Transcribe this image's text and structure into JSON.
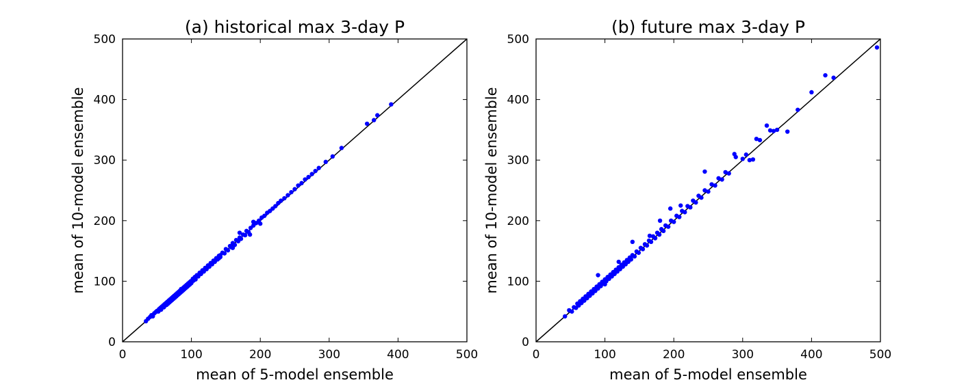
{
  "chart_data": [
    {
      "type": "scatter",
      "title": "(a) historical max 3-day P",
      "xlabel": "mean of 5-model ensemble",
      "ylabel": "mean of 10-model ensemble",
      "xlim": [
        0,
        500
      ],
      "ylim": [
        0,
        500
      ],
      "xticks": [
        0,
        100,
        200,
        300,
        400,
        500
      ],
      "yticks": [
        0,
        100,
        200,
        300,
        400,
        500
      ],
      "marker_color": "#0000ff",
      "reference_line": "y = x",
      "grid": false,
      "points": [
        [
          34,
          34
        ],
        [
          37,
          38
        ],
        [
          40,
          41
        ],
        [
          42,
          44
        ],
        [
          44,
          42
        ],
        [
          46,
          47
        ],
        [
          48,
          49
        ],
        [
          50,
          51
        ],
        [
          52,
          50
        ],
        [
          53,
          54
        ],
        [
          55,
          56
        ],
        [
          56,
          53
        ],
        [
          57,
          58
        ],
        [
          59,
          60
        ],
        [
          60,
          57
        ],
        [
          61,
          62
        ],
        [
          62,
          60
        ],
        [
          63,
          64
        ],
        [
          64,
          61
        ],
        [
          65,
          66
        ],
        [
          66,
          63
        ],
        [
          67,
          68
        ],
        [
          68,
          65
        ],
        [
          69,
          70
        ],
        [
          70,
          67
        ],
        [
          71,
          72
        ],
        [
          72,
          69
        ],
        [
          73,
          74
        ],
        [
          74,
          71
        ],
        [
          75,
          76
        ],
        [
          76,
          73
        ],
        [
          77,
          78
        ],
        [
          78,
          75
        ],
        [
          79,
          80
        ],
        [
          80,
          77
        ],
        [
          81,
          82
        ],
        [
          82,
          79
        ],
        [
          83,
          84
        ],
        [
          84,
          81
        ],
        [
          85,
          87
        ],
        [
          86,
          83
        ],
        [
          87,
          88
        ],
        [
          88,
          85
        ],
        [
          89,
          90
        ],
        [
          90,
          87
        ],
        [
          91,
          92
        ],
        [
          92,
          89
        ],
        [
          93,
          94
        ],
        [
          94,
          91
        ],
        [
          95,
          96
        ],
        [
          96,
          93
        ],
        [
          97,
          98
        ],
        [
          98,
          95
        ],
        [
          99,
          100
        ],
        [
          100,
          97
        ],
        [
          102,
          104
        ],
        [
          103,
          101
        ],
        [
          105,
          107
        ],
        [
          106,
          103
        ],
        [
          108,
          110
        ],
        [
          110,
          108
        ],
        [
          112,
          114
        ],
        [
          114,
          112
        ],
        [
          116,
          118
        ],
        [
          118,
          116
        ],
        [
          120,
          122
        ],
        [
          122,
          120
        ],
        [
          124,
          126
        ],
        [
          126,
          124
        ],
        [
          128,
          130
        ],
        [
          130,
          128
        ],
        [
          132,
          134
        ],
        [
          134,
          132
        ],
        [
          136,
          138
        ],
        [
          138,
          136
        ],
        [
          140,
          142
        ],
        [
          142,
          140
        ],
        [
          145,
          147
        ],
        [
          148,
          146
        ],
        [
          150,
          153
        ],
        [
          153,
          151
        ],
        [
          156,
          158
        ],
        [
          158,
          156
        ],
        [
          160,
          163
        ],
        [
          163,
          160
        ],
        [
          165,
          168
        ],
        [
          168,
          166
        ],
        [
          170,
          172
        ],
        [
          172,
          170
        ],
        [
          175,
          177
        ],
        [
          178,
          176
        ],
        [
          180,
          183
        ],
        [
          183,
          181
        ],
        [
          186,
          188
        ],
        [
          190,
          192
        ],
        [
          194,
          196
        ],
        [
          198,
          200
        ],
        [
          202,
          205
        ],
        [
          206,
          208
        ],
        [
          210,
          213
        ],
        [
          214,
          216
        ],
        [
          218,
          220
        ],
        [
          222,
          224
        ],
        [
          226,
          229
        ],
        [
          230,
          233
        ],
        [
          235,
          237
        ],
        [
          240,
          242
        ],
        [
          245,
          247
        ],
        [
          250,
          252
        ],
        [
          255,
          258
        ],
        [
          260,
          262
        ],
        [
          265,
          268
        ],
        [
          270,
          272
        ],
        [
          275,
          277
        ],
        [
          280,
          282
        ],
        [
          285,
          287
        ],
        [
          295,
          297
        ],
        [
          305,
          306
        ],
        [
          318,
          320
        ],
        [
          355,
          360
        ],
        [
          365,
          366
        ],
        [
          370,
          374
        ],
        [
          390,
          392
        ],
        [
          142,
          143
        ],
        [
          170,
          180
        ],
        [
          190,
          198
        ],
        [
          200,
          195
        ],
        [
          185,
          177
        ],
        [
          160,
          155
        ],
        [
          140,
          138
        ]
      ]
    },
    {
      "type": "scatter",
      "title": "(b) future max 3-day P",
      "xlabel": "mean of 5-model ensemble",
      "ylabel": "mean of 10-model ensemble",
      "xlim": [
        0,
        500
      ],
      "ylim": [
        0,
        500
      ],
      "xticks": [
        0,
        100,
        200,
        300,
        400,
        500
      ],
      "yticks": [
        0,
        100,
        200,
        300,
        400,
        500
      ],
      "marker_color": "#0000ff",
      "reference_line": "y = x",
      "grid": false,
      "points": [
        [
          42,
          42
        ],
        [
          48,
          52
        ],
        [
          52,
          50
        ],
        [
          55,
          57
        ],
        [
          58,
          56
        ],
        [
          60,
          63
        ],
        [
          62,
          60
        ],
        [
          64,
          67
        ],
        [
          66,
          64
        ],
        [
          68,
          71
        ],
        [
          70,
          68
        ],
        [
          72,
          75
        ],
        [
          74,
          72
        ],
        [
          76,
          79
        ],
        [
          78,
          76
        ],
        [
          80,
          83
        ],
        [
          82,
          80
        ],
        [
          84,
          87
        ],
        [
          86,
          84
        ],
        [
          88,
          91
        ],
        [
          90,
          88
        ],
        [
          92,
          95
        ],
        [
          94,
          92
        ],
        [
          96,
          99
        ],
        [
          98,
          96
        ],
        [
          100,
          103
        ],
        [
          102,
          100
        ],
        [
          104,
          107
        ],
        [
          106,
          104
        ],
        [
          108,
          111
        ],
        [
          110,
          108
        ],
        [
          112,
          115
        ],
        [
          114,
          112
        ],
        [
          116,
          119
        ],
        [
          118,
          116
        ],
        [
          120,
          123
        ],
        [
          122,
          120
        ],
        [
          124,
          127
        ],
        [
          126,
          124
        ],
        [
          128,
          131
        ],
        [
          130,
          128
        ],
        [
          132,
          135
        ],
        [
          134,
          132
        ],
        [
          136,
          139
        ],
        [
          138,
          136
        ],
        [
          140,
          143
        ],
        [
          143,
          141
        ],
        [
          146,
          149
        ],
        [
          149,
          147
        ],
        [
          152,
          155
        ],
        [
          155,
          153
        ],
        [
          158,
          161
        ],
        [
          161,
          159
        ],
        [
          164,
          167
        ],
        [
          167,
          165
        ],
        [
          170,
          174
        ],
        [
          173,
          171
        ],
        [
          176,
          180
        ],
        [
          179,
          177
        ],
        [
          182,
          186
        ],
        [
          185,
          183
        ],
        [
          188,
          192
        ],
        [
          192,
          190
        ],
        [
          196,
          200
        ],
        [
          200,
          198
        ],
        [
          204,
          208
        ],
        [
          208,
          206
        ],
        [
          212,
          216
        ],
        [
          216,
          214
        ],
        [
          220,
          224
        ],
        [
          224,
          222
        ],
        [
          228,
          233
        ],
        [
          232,
          230
        ],
        [
          236,
          241
        ],
        [
          240,
          238
        ],
        [
          245,
          250
        ],
        [
          250,
          248
        ],
        [
          255,
          260
        ],
        [
          260,
          258
        ],
        [
          265,
          270
        ],
        [
          270,
          268
        ],
        [
          275,
          280
        ],
        [
          280,
          278
        ],
        [
          288,
          310
        ],
        [
          290,
          305
        ],
        [
          300,
          302
        ],
        [
          305,
          309
        ],
        [
          310,
          300
        ],
        [
          315,
          301
        ],
        [
          320,
          335
        ],
        [
          325,
          333
        ],
        [
          335,
          357
        ],
        [
          340,
          349
        ],
        [
          345,
          348
        ],
        [
          350,
          350
        ],
        [
          365,
          347
        ],
        [
          380,
          383
        ],
        [
          400,
          412
        ],
        [
          420,
          440
        ],
        [
          432,
          436
        ],
        [
          495,
          486
        ],
        [
          90,
          110
        ],
        [
          100,
          95
        ],
        [
          120,
          132
        ],
        [
          140,
          165
        ],
        [
          165,
          175
        ],
        [
          180,
          200
        ],
        [
          195,
          220
        ],
        [
          210,
          225
        ],
        [
          245,
          281
        ]
      ]
    }
  ]
}
